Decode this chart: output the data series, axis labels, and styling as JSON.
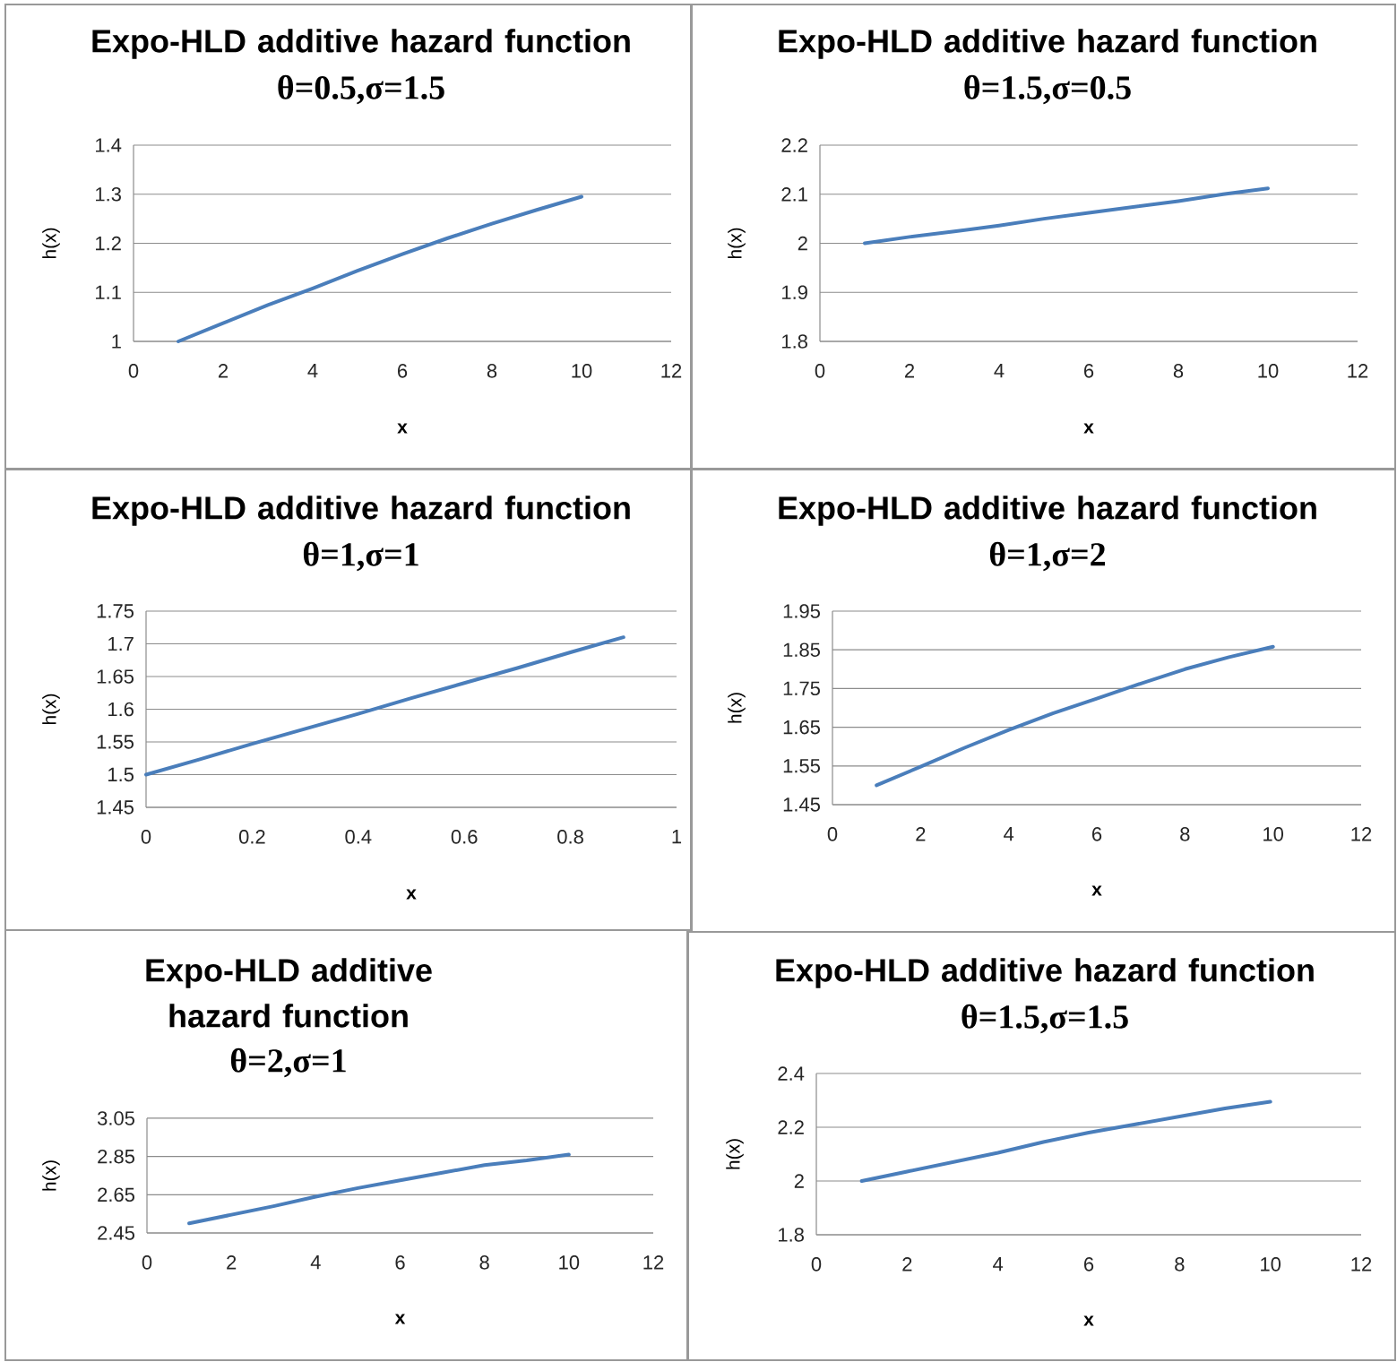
{
  "chart_data": [
    {
      "type": "line",
      "title": "Expo-HLD additive hazard function",
      "subtitle": "θ=0.5,σ=1.5",
      "xlabel": "x",
      "ylabel": "h(x)",
      "color": "#4a7ebb",
      "grid": "y",
      "x": [
        1,
        2,
        3,
        4,
        5,
        6,
        7,
        8,
        9,
        10
      ],
      "values": [
        1.0,
        1.037,
        1.074,
        1.108,
        1.144,
        1.178,
        1.21,
        1.24,
        1.268,
        1.295
      ],
      "xlim": [
        0,
        12
      ],
      "xticks": [
        0,
        2,
        4,
        6,
        8,
        10,
        12
      ],
      "ylim": [
        1,
        1.4
      ],
      "yticks": [
        1,
        1.1,
        1.2,
        1.3,
        1.4
      ]
    },
    {
      "type": "line",
      "title": "Expo-HLD additive hazard function",
      "subtitle": "θ=1.5,σ=0.5",
      "xlabel": "x",
      "ylabel": "h(x)",
      "color": "#4a7ebb",
      "grid": "y",
      "x": [
        1,
        2,
        3,
        4,
        5,
        6,
        7,
        8,
        9,
        10
      ],
      "values": [
        2.0,
        2.013,
        2.024,
        2.036,
        2.05,
        2.062,
        2.074,
        2.086,
        2.1,
        2.112
      ],
      "xlim": [
        0,
        12
      ],
      "xticks": [
        0,
        2,
        4,
        6,
        8,
        10,
        12
      ],
      "ylim": [
        1.8,
        2.2
      ],
      "yticks": [
        1.8,
        1.9,
        2,
        2.1,
        2.2
      ]
    },
    {
      "type": "line",
      "title": "Expo-HLD additive hazard function",
      "subtitle": "θ=1,σ=1",
      "xlabel": "x",
      "ylabel": "h(x)",
      "color": "#4a7ebb",
      "grid": "y",
      "x": [
        0,
        0.1,
        0.2,
        0.3,
        0.4,
        0.5,
        0.6,
        0.7,
        0.8,
        0.9
      ],
      "values": [
        1.5,
        1.523,
        1.547,
        1.57,
        1.593,
        1.617,
        1.64,
        1.663,
        1.687,
        1.71
      ],
      "xlim": [
        0,
        1
      ],
      "xticks": [
        0,
        0.2,
        0.4,
        0.6,
        0.8,
        1
      ],
      "ylim": [
        1.45,
        1.75
      ],
      "yticks": [
        1.45,
        1.5,
        1.55,
        1.6,
        1.65,
        1.7,
        1.75
      ]
    },
    {
      "type": "line",
      "title": "Expo-HLD additive hazard function",
      "subtitle": "θ=1,σ=2",
      "xlabel": "x",
      "ylabel": "h(x)",
      "color": "#4a7ebb",
      "grid": "y",
      "x": [
        1,
        2,
        3,
        4,
        5,
        6,
        7,
        8,
        9,
        10
      ],
      "values": [
        1.5,
        1.548,
        1.597,
        1.643,
        1.686,
        1.724,
        1.763,
        1.8,
        1.831,
        1.858
      ],
      "xlim": [
        0,
        12
      ],
      "xticks": [
        0,
        2,
        4,
        6,
        8,
        10,
        12
      ],
      "ylim": [
        1.45,
        1.95
      ],
      "yticks": [
        1.45,
        1.55,
        1.65,
        1.75,
        1.85,
        1.95
      ]
    },
    {
      "type": "line",
      "title": "Expo-HLD additive hazard function",
      "subtitle": "θ=2,σ=1",
      "xlabel": "x",
      "ylabel": "h(x)",
      "color": "#4a7ebb",
      "grid": "y",
      "x": [
        1,
        2,
        3,
        4,
        5,
        6,
        7,
        8,
        9,
        10
      ],
      "values": [
        2.5,
        2.545,
        2.59,
        2.64,
        2.685,
        2.725,
        2.765,
        2.805,
        2.83,
        2.86
      ],
      "xlim": [
        0,
        12
      ],
      "xticks": [
        0,
        2,
        4,
        6,
        8,
        10,
        12
      ],
      "ylim": [
        2.45,
        3.05
      ],
      "yticks": [
        2.45,
        2.65,
        2.85,
        3.05
      ]
    },
    {
      "type": "line",
      "title": "Expo-HLD additive hazard function",
      "subtitle": "θ=1.5,σ=1.5",
      "xlabel": "x",
      "ylabel": "h(x)",
      "color": "#4a7ebb",
      "grid": "y",
      "x": [
        1,
        2,
        3,
        4,
        5,
        6,
        7,
        8,
        9,
        10
      ],
      "values": [
        2.0,
        2.035,
        2.07,
        2.105,
        2.145,
        2.18,
        2.21,
        2.24,
        2.27,
        2.295
      ],
      "xlim": [
        0,
        12
      ],
      "xticks": [
        0,
        2,
        4,
        6,
        8,
        10,
        12
      ],
      "ylim": [
        1.8,
        2.4
      ],
      "yticks": [
        1.8,
        2,
        2.2,
        2.4
      ]
    }
  ]
}
